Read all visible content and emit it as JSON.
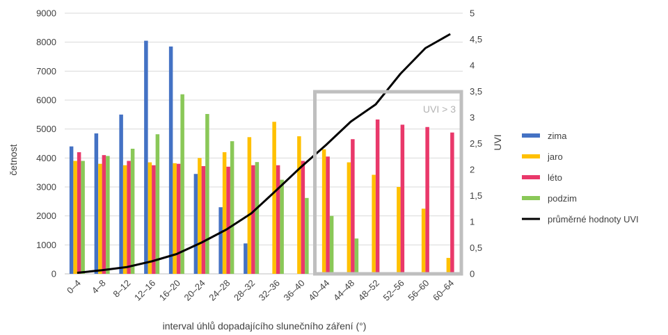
{
  "chart_data": {
    "type": "bar",
    "categories": [
      "0–4",
      "4–8",
      "8–12",
      "12–16",
      "16–20",
      "20–24",
      "24–28",
      "28–32",
      "32–36",
      "36–40",
      "40–44",
      "44–48",
      "48–52",
      "52–56",
      "56–60",
      "60–64"
    ],
    "series": [
      {
        "name": "zima",
        "color": "#4472c4",
        "values": [
          4400,
          4850,
          5500,
          8050,
          7850,
          3450,
          2300,
          1050,
          null,
          null,
          null,
          null,
          null,
          null,
          null,
          null
        ]
      },
      {
        "name": "jaro",
        "color": "#ffc000",
        "values": [
          3900,
          3800,
          3750,
          3850,
          3820,
          4000,
          4200,
          4720,
          5250,
          4750,
          4300,
          3850,
          3420,
          3000,
          2250,
          550
        ]
      },
      {
        "name": "léto",
        "color": "#e9386a",
        "values": [
          4200,
          4100,
          3900,
          3750,
          3800,
          3720,
          3700,
          3750,
          3750,
          3900,
          4050,
          4650,
          5330,
          5150,
          5070,
          4880
        ]
      },
      {
        "name": "podzim",
        "color": "#8ac858",
        "values": [
          3900,
          4070,
          4320,
          4820,
          6200,
          5520,
          4580,
          3860,
          3250,
          2620,
          2000,
          1220,
          null,
          null,
          null,
          null
        ]
      }
    ],
    "line_series": {
      "name": "průměrné hodnoty UVI",
      "color": "#000000",
      "values": [
        0.02,
        0.07,
        0.13,
        0.24,
        0.38,
        0.6,
        0.85,
        1.16,
        1.6,
        2.05,
        2.47,
        2.92,
        3.25,
        3.84,
        4.33,
        4.6
      ]
    },
    "xlabel": "interval úhlů dopadajícího slunečního záření (°)",
    "ylabel": "četnost",
    "y2label": "UVI",
    "ylim": [
      0,
      9000
    ],
    "y2lim": [
      0,
      5
    ],
    "yticks": [
      "0",
      "1000",
      "2000",
      "3000",
      "4000",
      "5000",
      "6000",
      "7000",
      "8000",
      "9000"
    ],
    "y2ticks": [
      "0",
      "0,5",
      "1",
      "1,5",
      "2",
      "2,5",
      "3",
      "3,5",
      "4",
      "4,5",
      "5"
    ],
    "grid": true,
    "legend_position": "right",
    "annotation": {
      "text": "UVI > 3",
      "color": "#bfbfbf",
      "from_category": 10,
      "to_category": 15
    }
  }
}
